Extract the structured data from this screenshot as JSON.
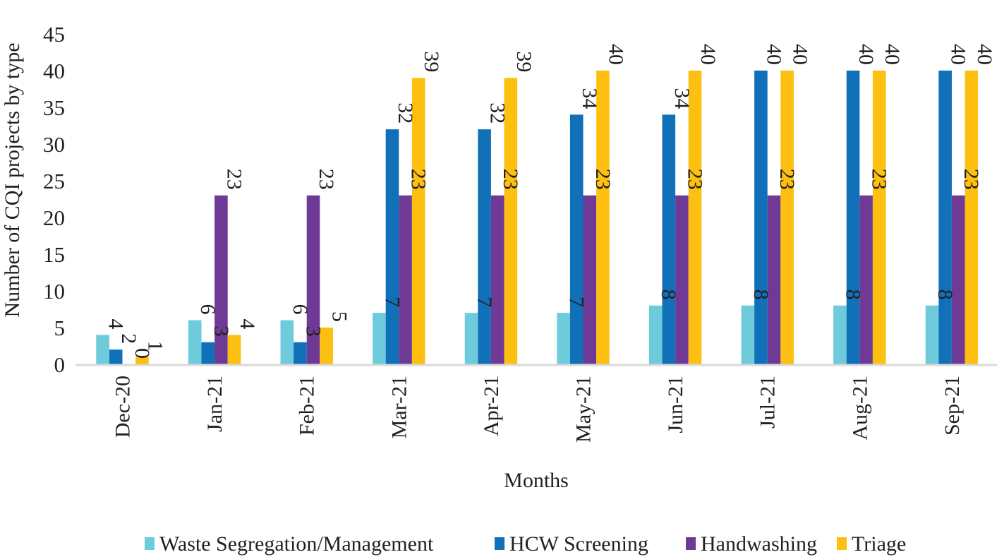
{
  "chart_data": {
    "type": "bar",
    "title": "",
    "xlabel": "Months",
    "ylabel": "Number of CQI projects by type",
    "ylim": [
      0,
      45
    ],
    "yticks": [
      "0",
      "5",
      "10",
      "15",
      "20",
      "25",
      "30",
      "35",
      "40",
      "45"
    ],
    "grid": false,
    "legend_position": "bottom",
    "categories": [
      "Dec-20",
      "Jan-21",
      "Feb-21",
      "Mar-21",
      "Apr-21",
      "May-21",
      "Jun-21",
      "Jul-21",
      "Aug-21",
      "Sep-21"
    ],
    "series": [
      {
        "name": "Waste Segregation/Management",
        "color": "#6ecbdc",
        "values": [
          4,
          6,
          6,
          7,
          7,
          7,
          8,
          8,
          8,
          8
        ]
      },
      {
        "name": "HCW Screening",
        "color": "#1070b8",
        "values": [
          2,
          3,
          3,
          32,
          32,
          34,
          34,
          40,
          40,
          40
        ]
      },
      {
        "name": "Handwashing",
        "color": "#6f3a96",
        "values": [
          0,
          23,
          23,
          23,
          23,
          23,
          23,
          23,
          23,
          23
        ]
      },
      {
        "name": "Triage",
        "color": "#fdc010",
        "values": [
          1,
          4,
          5,
          39,
          39,
          40,
          40,
          40,
          40,
          40
        ]
      }
    ]
  }
}
